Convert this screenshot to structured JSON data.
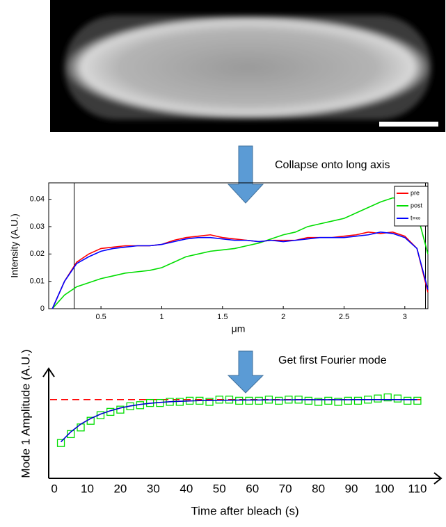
{
  "annotations": {
    "step1": "Collapse onto long axis",
    "step2": "Get first Fourier mode"
  },
  "chart_data": [
    {
      "type": "line",
      "xlabel": "μm",
      "ylabel": "Intensity (A.U.)",
      "xlim": [
        0.07,
        3.19
      ],
      "ylim": [
        0,
        0.046
      ],
      "xticks": [
        0.5,
        1,
        1.5,
        2,
        2.5,
        3
      ],
      "yticks": [
        0,
        0.01,
        0.02,
        0.03,
        0.04
      ],
      "vlines": [
        0.28,
        3.17
      ],
      "legend": "upper right",
      "x": [
        0.1,
        0.2,
        0.3,
        0.4,
        0.5,
        0.6,
        0.7,
        0.8,
        0.9,
        1.0,
        1.1,
        1.2,
        1.3,
        1.4,
        1.5,
        1.6,
        1.7,
        1.8,
        1.9,
        2.0,
        2.1,
        2.2,
        2.3,
        2.4,
        2.5,
        2.6,
        2.7,
        2.8,
        2.9,
        3.0,
        3.1,
        3.19
      ],
      "series": [
        {
          "name": "pre",
          "color": "#ff0000",
          "values": [
            0,
            0.01,
            0.017,
            0.02,
            0.022,
            0.0225,
            0.023,
            0.023,
            0.023,
            0.0235,
            0.025,
            0.026,
            0.0265,
            0.027,
            0.026,
            0.0255,
            0.025,
            0.0245,
            0.025,
            0.025,
            0.025,
            0.026,
            0.026,
            0.026,
            0.0265,
            0.027,
            0.028,
            0.0275,
            0.028,
            0.0265,
            0.022,
            0.006
          ]
        },
        {
          "name": "post",
          "color": "#00dd00",
          "values": [
            0,
            0.005,
            0.008,
            0.0095,
            0.011,
            0.012,
            0.013,
            0.0135,
            0.014,
            0.015,
            0.017,
            0.019,
            0.02,
            0.021,
            0.0215,
            0.022,
            0.023,
            0.024,
            0.0255,
            0.027,
            0.028,
            0.03,
            0.031,
            0.032,
            0.033,
            0.035,
            0.037,
            0.039,
            0.0405,
            0.04,
            0.035,
            0.02
          ]
        },
        {
          "name": "t=∞",
          "color": "#0000ff",
          "values": [
            0,
            0.01,
            0.0165,
            0.019,
            0.021,
            0.022,
            0.0225,
            0.023,
            0.023,
            0.0235,
            0.0245,
            0.0255,
            0.026,
            0.026,
            0.0255,
            0.025,
            0.025,
            0.0245,
            0.025,
            0.0245,
            0.025,
            0.0255,
            0.026,
            0.026,
            0.026,
            0.0265,
            0.027,
            0.028,
            0.0275,
            0.026,
            0.022,
            0.007
          ]
        }
      ]
    },
    {
      "type": "scatter",
      "xlabel": "Time after bleach (s)",
      "ylabel": "Mode 1 Amplitude (A.U.)",
      "xlim": [
        -1.7,
        117.4
      ],
      "ylim": [
        0,
        1
      ],
      "xticks": [
        0,
        10,
        20,
        30,
        40,
        50,
        60,
        70,
        80,
        90,
        100,
        110
      ],
      "hline": {
        "value": 0.72,
        "color": "#ff0000"
      },
      "x": [
        2,
        5,
        8,
        11,
        14,
        17,
        20,
        23,
        26,
        29,
        32,
        35,
        38,
        41,
        44,
        47,
        50,
        53,
        56,
        59,
        62,
        65,
        68,
        71,
        74,
        77,
        80,
        83,
        86,
        89,
        92,
        95,
        98,
        101,
        104,
        107,
        110
      ],
      "series": [
        {
          "color": "#00dd00",
          "marker": "square",
          "values": [
            0.33,
            0.41,
            0.47,
            0.53,
            0.58,
            0.61,
            0.63,
            0.66,
            0.67,
            0.69,
            0.69,
            0.7,
            0.7,
            0.71,
            0.71,
            0.7,
            0.72,
            0.72,
            0.71,
            0.71,
            0.71,
            0.72,
            0.71,
            0.72,
            0.72,
            0.71,
            0.7,
            0.71,
            0.7,
            0.71,
            0.71,
            0.72,
            0.73,
            0.74,
            0.73,
            0.71,
            0.71
          ]
        },
        {
          "color": "#0000cc",
          "marker": "none",
          "values": [
            0.34,
            0.43,
            0.5,
            0.55,
            0.59,
            0.62,
            0.645,
            0.663,
            0.677,
            0.687,
            0.695,
            0.701,
            0.705,
            0.708,
            0.711,
            0.713,
            0.714,
            0.715,
            0.716,
            0.717,
            0.717,
            0.718,
            0.718,
            0.718,
            0.719,
            0.719,
            0.719,
            0.719,
            0.719,
            0.719,
            0.72,
            0.72,
            0.72,
            0.72,
            0.72,
            0.72,
            0.72
          ]
        }
      ]
    }
  ]
}
